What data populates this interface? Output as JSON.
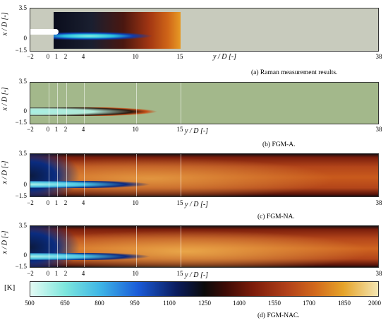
{
  "panels": [
    {
      "caption": "(a) Raman measurement results.",
      "type": "raman"
    },
    {
      "caption": "(b) FGM-A.",
      "type": "fgm-a"
    },
    {
      "caption": "(c) FGM-NA.",
      "type": "fgm-na"
    },
    {
      "caption": "(d) FGM-NAC.",
      "type": "fgm-nac"
    }
  ],
  "y_axis": {
    "label": "x / D [-]",
    "ticks": [
      "3.5",
      "0",
      "−1.5"
    ]
  },
  "x_axis": {
    "label": "y / D [-]",
    "ticks": [
      "−2",
      "0",
      "1",
      "2",
      "4",
      "10",
      "15",
      "38"
    ]
  },
  "colorbar": {
    "unit": "[K]",
    "ticks": [
      "500",
      "650",
      "800",
      "950",
      "1100",
      "1250",
      "1400",
      "1550",
      "1700",
      "1850",
      "2000"
    ]
  }
}
